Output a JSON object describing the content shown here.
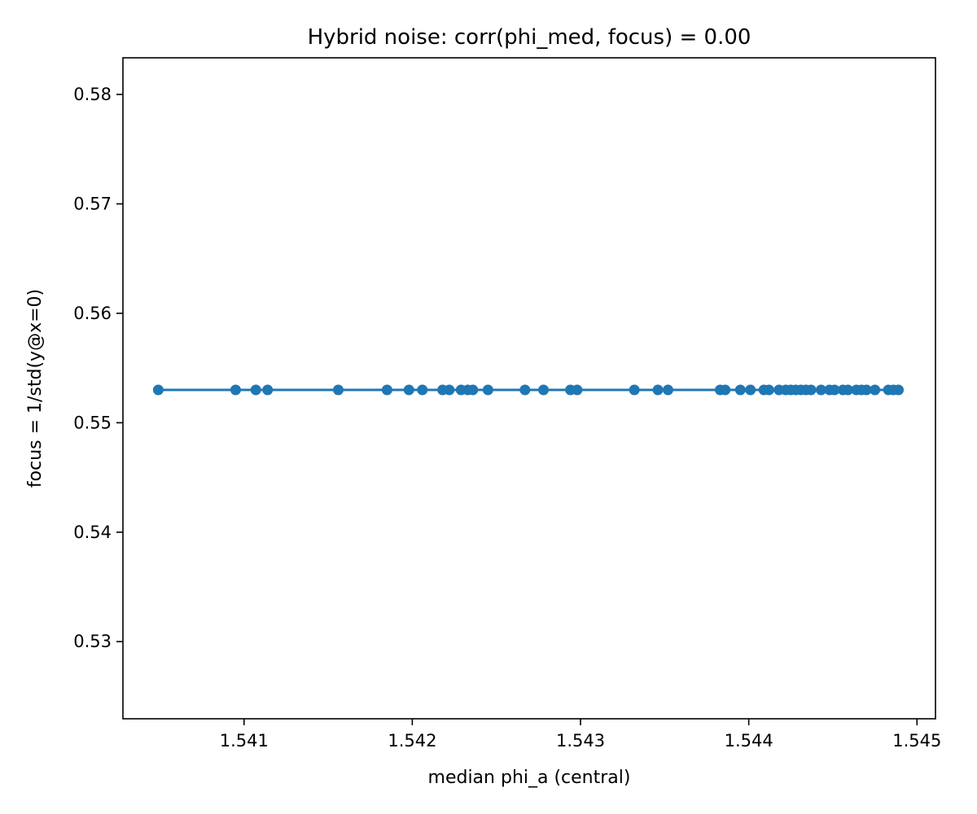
{
  "chart_data": {
    "type": "scatter",
    "title": "Hybrid noise: corr(phi_med, focus) = 0.00",
    "xlabel": "median phi_a (central)",
    "ylabel": "focus = 1/std(y@x=0)",
    "xlim": [
      1.54028,
      1.54511
    ],
    "ylim": [
      0.52295,
      0.58335
    ],
    "xticks": [
      1.541,
      1.542,
      1.543,
      1.544,
      1.545
    ],
    "xtick_labels": [
      "1.541",
      "1.542",
      "1.543",
      "1.544",
      "1.545"
    ],
    "yticks": [
      0.53,
      0.54,
      0.55,
      0.56,
      0.57,
      0.58
    ],
    "ytick_labels": [
      "0.53",
      "0.54",
      "0.55",
      "0.56",
      "0.57",
      "0.58"
    ],
    "grid": false,
    "connected_line": true,
    "series": [
      {
        "color": "#1f77b4",
        "x": [
          1.54049,
          1.54095,
          1.54107,
          1.54114,
          1.54156,
          1.54185,
          1.54198,
          1.54206,
          1.54218,
          1.54222,
          1.54229,
          1.54233,
          1.54236,
          1.54245,
          1.54267,
          1.54278,
          1.54294,
          1.54298,
          1.54332,
          1.54346,
          1.54352,
          1.54383,
          1.54386,
          1.54395,
          1.54401,
          1.54409,
          1.54412,
          1.54418,
          1.54422,
          1.54425,
          1.54428,
          1.54431,
          1.54434,
          1.54437,
          1.54443,
          1.54448,
          1.54451,
          1.54456,
          1.54459,
          1.54464,
          1.54467,
          1.5447,
          1.54475,
          1.54483,
          1.54486,
          1.54489
        ],
        "y": [
          0.553,
          0.553,
          0.553,
          0.553,
          0.553,
          0.553,
          0.553,
          0.553,
          0.553,
          0.553,
          0.553,
          0.553,
          0.553,
          0.553,
          0.553,
          0.553,
          0.553,
          0.553,
          0.553,
          0.553,
          0.553,
          0.553,
          0.553,
          0.553,
          0.553,
          0.553,
          0.553,
          0.553,
          0.553,
          0.553,
          0.553,
          0.553,
          0.553,
          0.553,
          0.553,
          0.553,
          0.553,
          0.553,
          0.553,
          0.553,
          0.553,
          0.553,
          0.553,
          0.553,
          0.553,
          0.553
        ]
      }
    ]
  }
}
